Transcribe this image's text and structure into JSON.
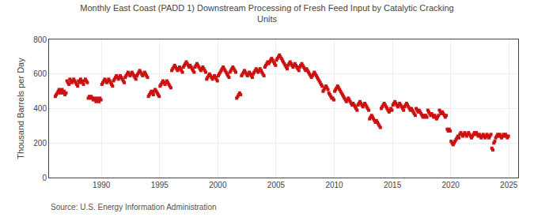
{
  "chart_data": {
    "type": "scatter",
    "title": "Monthly East Coast (PADD 1) Downstream Processing of Fresh Feed Input by Catalytic Cracking\nUnits",
    "ylabel": "Thousand Barrels per Day",
    "annotations": [
      "Source: U.S. Energy Information Administration"
    ],
    "color": "#cc1111",
    "marker": "square",
    "grid": true,
    "xlim": [
      1985.5,
      2025.8
    ],
    "xticks": [
      1990,
      1995,
      2000,
      2005,
      2010,
      2015,
      2020,
      2025
    ],
    "ylim": [
      0,
      800
    ],
    "yticks": [
      0,
      200,
      400,
      600,
      800
    ],
    "x": [
      1986.04,
      1986.12,
      1986.21,
      1986.29,
      1986.37,
      1986.46,
      1986.54,
      1986.62,
      1986.71,
      1986.79,
      1986.87,
      1986.96,
      1987.04,
      1987.12,
      1987.21,
      1987.29,
      1987.37,
      1987.46,
      1987.54,
      1987.62,
      1987.71,
      1987.79,
      1987.87,
      1987.96,
      1988.04,
      1988.12,
      1988.21,
      1988.29,
      1988.37,
      1988.46,
      1988.54,
      1988.62,
      1988.71,
      1988.79,
      1988.87,
      1988.96,
      1989.04,
      1989.12,
      1989.21,
      1989.29,
      1989.37,
      1989.46,
      1989.54,
      1989.62,
      1989.71,
      1989.79,
      1989.87,
      1989.96,
      1990.04,
      1990.12,
      1990.21,
      1990.29,
      1990.37,
      1990.46,
      1990.54,
      1990.62,
      1990.71,
      1990.79,
      1990.87,
      1990.96,
      1991.04,
      1991.12,
      1991.21,
      1991.29,
      1991.37,
      1991.46,
      1991.54,
      1991.62,
      1991.71,
      1991.79,
      1991.87,
      1991.96,
      1992.04,
      1992.12,
      1992.21,
      1992.29,
      1992.37,
      1992.46,
      1992.54,
      1992.62,
      1992.71,
      1992.79,
      1992.87,
      1992.96,
      1993.04,
      1993.12,
      1993.21,
      1993.29,
      1993.37,
      1993.46,
      1993.54,
      1993.62,
      1993.71,
      1993.79,
      1993.87,
      1993.96,
      1994.04,
      1994.12,
      1994.21,
      1994.29,
      1994.37,
      1994.46,
      1994.54,
      1994.62,
      1994.71,
      1994.79,
      1994.87,
      1994.96,
      1995.04,
      1995.12,
      1995.21,
      1995.29,
      1995.37,
      1995.46,
      1995.54,
      1995.62,
      1995.71,
      1995.79,
      1995.87,
      1995.96,
      1996.04,
      1996.12,
      1996.21,
      1996.29,
      1996.37,
      1996.46,
      1996.54,
      1996.62,
      1996.71,
      1996.79,
      1996.87,
      1996.96,
      1997.04,
      1997.12,
      1997.21,
      1997.29,
      1997.37,
      1997.46,
      1997.54,
      1997.62,
      1997.71,
      1997.79,
      1997.87,
      1997.96,
      1998.04,
      1998.12,
      1998.21,
      1998.29,
      1998.37,
      1998.46,
      1998.54,
      1998.62,
      1998.71,
      1998.79,
      1998.87,
      1998.96,
      1999.04,
      1999.12,
      1999.21,
      1999.29,
      1999.37,
      1999.46,
      1999.54,
      1999.62,
      1999.71,
      1999.79,
      1999.87,
      1999.96,
      2000.04,
      2000.12,
      2000.21,
      2000.29,
      2000.37,
      2000.46,
      2000.54,
      2000.62,
      2000.71,
      2000.79,
      2000.87,
      2000.96,
      2001.04,
      2001.12,
      2001.21,
      2001.29,
      2001.37,
      2001.46,
      2001.54,
      2001.62,
      2001.71,
      2001.79,
      2001.87,
      2001.96,
      2002.04,
      2002.12,
      2002.21,
      2002.29,
      2002.37,
      2002.46,
      2002.54,
      2002.62,
      2002.71,
      2002.79,
      2002.87,
      2002.96,
      2003.04,
      2003.12,
      2003.21,
      2003.29,
      2003.37,
      2003.46,
      2003.54,
      2003.62,
      2003.71,
      2003.79,
      2003.87,
      2003.96,
      2004.04,
      2004.12,
      2004.21,
      2004.29,
      2004.37,
      2004.46,
      2004.54,
      2004.62,
      2004.71,
      2004.79,
      2004.87,
      2004.96,
      2005.04,
      2005.12,
      2005.21,
      2005.29,
      2005.37,
      2005.46,
      2005.54,
      2005.62,
      2005.71,
      2005.79,
      2005.87,
      2005.96,
      2006.04,
      2006.12,
      2006.21,
      2006.29,
      2006.37,
      2006.46,
      2006.54,
      2006.62,
      2006.71,
      2006.79,
      2006.87,
      2006.96,
      2007.04,
      2007.12,
      2007.21,
      2007.29,
      2007.37,
      2007.46,
      2007.54,
      2007.62,
      2007.71,
      2007.79,
      2007.87,
      2007.96,
      2008.04,
      2008.12,
      2008.21,
      2008.29,
      2008.37,
      2008.46,
      2008.54,
      2008.62,
      2008.71,
      2008.79,
      2008.87,
      2008.96,
      2009.04,
      2009.12,
      2009.21,
      2009.29,
      2009.37,
      2009.46,
      2009.54,
      2009.62,
      2009.71,
      2009.79,
      2009.87,
      2009.96,
      2010.04,
      2010.12,
      2010.21,
      2010.29,
      2010.37,
      2010.46,
      2010.54,
      2010.62,
      2010.71,
      2010.79,
      2010.87,
      2010.96,
      2011.04,
      2011.12,
      2011.21,
      2011.29,
      2011.37,
      2011.46,
      2011.54,
      2011.62,
      2011.71,
      2011.79,
      2011.87,
      2011.96,
      2012.04,
      2012.12,
      2012.21,
      2012.29,
      2012.37,
      2012.46,
      2012.54,
      2012.62,
      2012.71,
      2012.79,
      2012.87,
      2012.96,
      2013.04,
      2013.12,
      2013.21,
      2013.29,
      2013.37,
      2013.46,
      2013.54,
      2013.62,
      2013.71,
      2013.79,
      2013.87,
      2013.96,
      2014.04,
      2014.12,
      2014.21,
      2014.29,
      2014.37,
      2014.46,
      2014.54,
      2014.62,
      2014.71,
      2014.79,
      2014.87,
      2014.96,
      2015.04,
      2015.12,
      2015.21,
      2015.29,
      2015.37,
      2015.46,
      2015.54,
      2015.62,
      2015.71,
      2015.79,
      2015.87,
      2015.96,
      2016.04,
      2016.12,
      2016.21,
      2016.29,
      2016.37,
      2016.46,
      2016.54,
      2016.62,
      2016.71,
      2016.79,
      2016.87,
      2016.96,
      2017.04,
      2017.12,
      2017.21,
      2017.29,
      2017.37,
      2017.46,
      2017.54,
      2017.62,
      2017.71,
      2017.79,
      2017.87,
      2017.96,
      2018.04,
      2018.12,
      2018.21,
      2018.29,
      2018.37,
      2018.46,
      2018.54,
      2018.62,
      2018.71,
      2018.79,
      2018.87,
      2018.96,
      2019.04,
      2019.12,
      2019.21,
      2019.29,
      2019.37,
      2019.46,
      2019.54,
      2019.62,
      2019.71,
      2019.79,
      2019.87,
      2019.96,
      2020.04,
      2020.12,
      2020.21,
      2020.29,
      2020.37,
      2020.46,
      2020.54,
      2020.62,
      2020.71,
      2020.79,
      2020.87,
      2020.96,
      2021.04,
      2021.12,
      2021.21,
      2021.29,
      2021.37,
      2021.46,
      2021.54,
      2021.62,
      2021.71,
      2021.79,
      2021.87,
      2021.96,
      2022.04,
      2022.12,
      2022.21,
      2022.29,
      2022.37,
      2022.46,
      2022.54,
      2022.62,
      2022.71,
      2022.79,
      2022.87,
      2022.96,
      2023.04,
      2023.12,
      2023.21,
      2023.29,
      2023.37,
      2023.46,
      2023.54,
      2023.62,
      2023.71,
      2023.79,
      2023.87,
      2023.96,
      2024.04,
      2024.12,
      2024.21,
      2024.29,
      2024.37,
      2024.46,
      2024.54,
      2024.62,
      2024.71,
      2024.79,
      2024.87,
      2024.96
    ],
    "values": [
      470,
      480,
      490,
      500,
      510,
      490,
      500,
      510,
      490,
      500,
      480,
      490,
      560,
      550,
      540,
      570,
      560,
      550,
      560,
      570,
      560,
      550,
      540,
      530,
      560,
      550,
      570,
      560,
      550,
      540,
      560,
      570,
      560,
      550,
      460,
      470,
      460,
      470,
      460,
      450,
      460,
      450,
      440,
      460,
      450,
      440,
      460,
      450,
      540,
      550,
      560,
      570,
      560,
      550,
      560,
      570,
      560,
      550,
      540,
      530,
      560,
      570,
      580,
      590,
      580,
      570,
      580,
      590,
      580,
      570,
      560,
      550,
      580,
      590,
      600,
      610,
      600,
      590,
      600,
      610,
      600,
      590,
      580,
      570,
      590,
      600,
      610,
      620,
      610,
      600,
      590,
      600,
      610,
      600,
      590,
      580,
      470,
      480,
      490,
      500,
      490,
      480,
      500,
      510,
      500,
      490,
      480,
      470,
      530,
      540,
      550,
      560,
      550,
      540,
      550,
      560,
      550,
      540,
      530,
      520,
      620,
      630,
      640,
      650,
      640,
      630,
      620,
      630,
      640,
      630,
      620,
      610,
      640,
      650,
      660,
      670,
      660,
      650,
      640,
      650,
      640,
      630,
      620,
      610,
      640,
      650,
      660,
      650,
      640,
      630,
      620,
      630,
      640,
      630,
      620,
      610,
      570,
      580,
      590,
      600,
      590,
      580,
      570,
      580,
      590,
      580,
      570,
      560,
      590,
      600,
      610,
      620,
      630,
      640,
      630,
      620,
      610,
      600,
      590,
      580,
      610,
      620,
      630,
      640,
      630,
      620,
      610,
      460,
      470,
      480,
      490,
      480,
      590,
      600,
      610,
      620,
      610,
      600,
      590,
      600,
      610,
      600,
      590,
      580,
      600,
      610,
      620,
      630,
      620,
      610,
      620,
      630,
      620,
      610,
      600,
      590,
      640,
      650,
      660,
      670,
      660,
      670,
      680,
      690,
      680,
      670,
      660,
      650,
      680,
      690,
      700,
      710,
      700,
      690,
      680,
      670,
      660,
      650,
      640,
      630,
      650,
      660,
      670,
      660,
      650,
      640,
      650,
      660,
      650,
      640,
      630,
      620,
      640,
      650,
      660,
      650,
      640,
      630,
      620,
      630,
      620,
      610,
      600,
      590,
      580,
      590,
      600,
      610,
      600,
      590,
      580,
      570,
      560,
      550,
      540,
      530,
      500,
      510,
      520,
      530,
      520,
      510,
      490,
      480,
      470,
      460,
      460,
      450,
      500,
      510,
      520,
      530,
      520,
      510,
      500,
      490,
      480,
      470,
      460,
      450,
      440,
      450,
      460,
      450,
      440,
      430,
      420,
      430,
      420,
      410,
      400,
      390,
      420,
      430,
      440,
      430,
      420,
      410,
      420,
      430,
      420,
      410,
      400,
      390,
      340,
      350,
      360,
      350,
      340,
      330,
      320,
      330,
      320,
      310,
      300,
      290,
      400,
      410,
      420,
      430,
      420,
      410,
      400,
      390,
      380,
      390,
      400,
      390,
      420,
      430,
      440,
      430,
      420,
      410,
      420,
      430,
      420,
      410,
      400,
      390,
      410,
      420,
      430,
      420,
      410,
      400,
      390,
      400,
      390,
      380,
      370,
      360,
      400,
      390,
      380,
      390,
      380,
      370,
      360,
      350,
      360,
      350,
      360,
      350,
      390,
      380,
      370,
      360,
      370,
      360,
      350,
      360,
      350,
      340,
      350,
      360,
      390,
      380,
      370,
      380,
      370,
      360,
      350,
      360,
      280,
      270,
      280,
      270,
      210,
      200,
      190,
      200,
      210,
      220,
      230,
      240,
      230,
      250,
      260,
      250,
      240,
      250,
      260,
      250,
      240,
      250,
      260,
      250,
      240,
      230,
      240,
      250,
      260,
      250,
      260,
      250,
      240,
      250,
      240,
      230,
      240,
      250,
      240,
      230,
      240,
      250,
      240,
      230,
      240,
      250,
      170,
      160,
      200,
      210,
      230,
      240,
      250,
      240,
      250,
      240,
      230,
      240,
      250,
      240,
      250,
      240,
      230,
      240
    ]
  }
}
